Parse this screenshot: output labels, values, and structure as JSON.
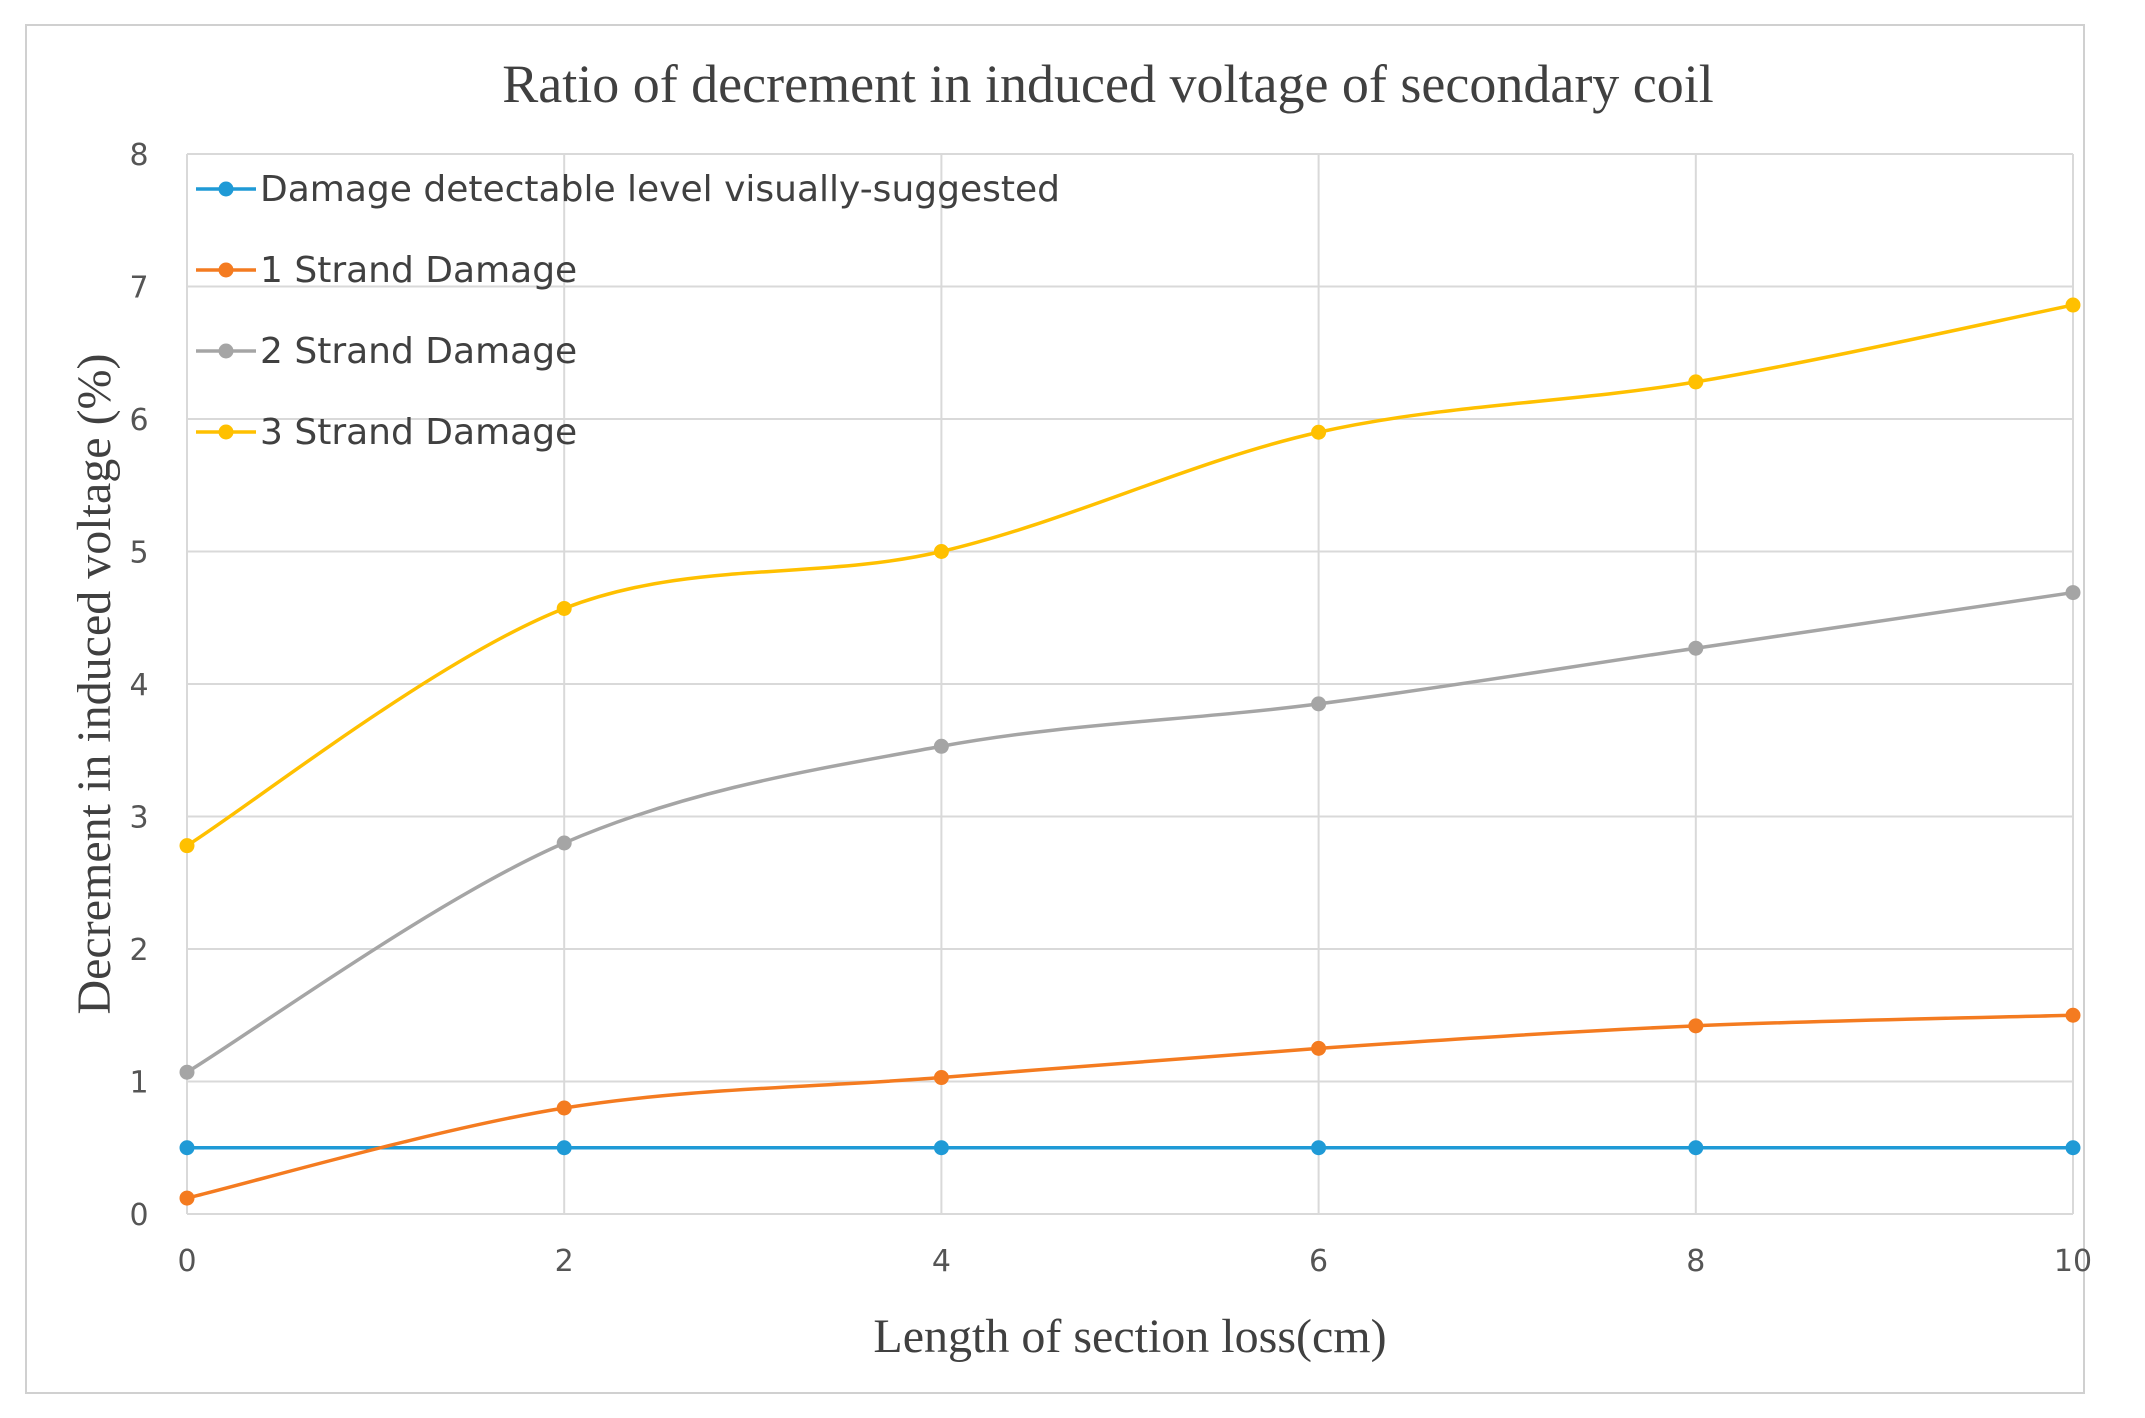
{
  "chart_data": {
    "type": "line",
    "title": "Ratio of decrement in induced voltage of secondary coil",
    "xlabel": "Length of section loss(cm)",
    "ylabel": "Decrement in induced voltage (%)",
    "x": [
      0,
      2,
      4,
      6,
      8,
      10
    ],
    "xlim": [
      0,
      10
    ],
    "ylim": [
      0,
      8
    ],
    "x_ticks": [
      0,
      2,
      4,
      6,
      8,
      10
    ],
    "y_ticks": [
      0,
      1,
      2,
      3,
      4,
      5,
      6,
      7,
      8
    ],
    "grid": true,
    "legend_position": "top-left",
    "series": [
      {
        "name": "Damage detectable level visually-suggested",
        "color": "#1f9ad6",
        "values": [
          0.5,
          0.5,
          0.5,
          0.5,
          0.5,
          0.5
        ]
      },
      {
        "name": "1 Strand Damage",
        "color": "#f47b20",
        "values": [
          0.12,
          0.8,
          1.03,
          1.25,
          1.42,
          1.5
        ]
      },
      {
        "name": "2 Strand Damage",
        "color": "#a5a5a5",
        "values": [
          1.07,
          2.8,
          3.53,
          3.85,
          4.27,
          4.69
        ]
      },
      {
        "name": "3 Strand Damage",
        "color": "#ffc000",
        "values": [
          2.78,
          4.57,
          5.0,
          5.9,
          6.28,
          6.86
        ]
      }
    ]
  }
}
